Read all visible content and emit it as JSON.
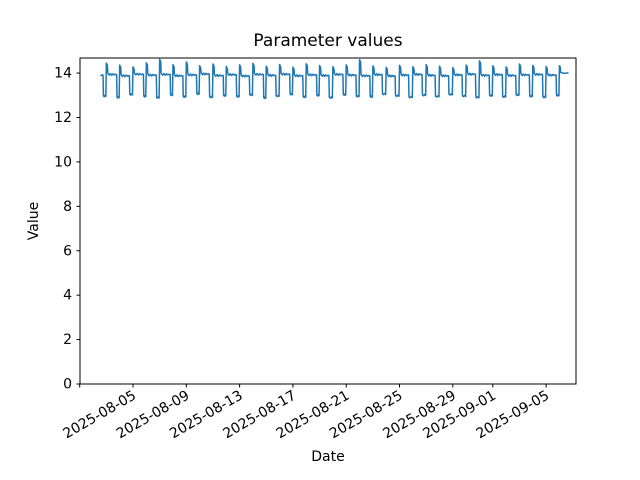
{
  "figure": {
    "title": "Parameter values",
    "xlabel": "Date",
    "ylabel": "Value"
  },
  "chart_data": {
    "type": "line",
    "title": "Parameter values",
    "xlabel": "Date",
    "ylabel": "Value",
    "grid": false,
    "legend": "none",
    "line_color": "#1f77b4",
    "axis_color": "#000000",
    "ylim": [
      0,
      14.68
    ],
    "yticks": [
      0,
      2,
      4,
      6,
      8,
      10,
      12,
      14
    ],
    "x_axis": {
      "start_date": "2025-08-01",
      "days_span": 37.25,
      "tick_rotation_deg": 30,
      "ticks": [
        {
          "day": 0,
          "label": ""
        },
        {
          "day": 4,
          "label": "2025-08-05"
        },
        {
          "day": 8,
          "label": "2025-08-09"
        },
        {
          "day": 12,
          "label": "2025-08-13"
        },
        {
          "day": 16,
          "label": "2025-08-17"
        },
        {
          "day": 20,
          "label": "2025-08-21"
        },
        {
          "day": 24,
          "label": "2025-08-25"
        },
        {
          "day": 28,
          "label": "2025-08-29"
        },
        {
          "day": 31,
          "label": "2025-09-01"
        },
        {
          "day": 35,
          "label": "2025-09-05"
        }
      ]
    },
    "series": {
      "name": "Parameter values",
      "description": "Daily cycle: plateau ~13.9, sharp drop to trough ~12.9, sharp rise with brief spike ~14.3-14.6. Hourly-like sampling from 2025-08-02 ~13:00 to 2025-09-06 ~15:00.",
      "data_start_day": 1.56,
      "first_cycle_day": 1.0,
      "value_range": [
        12.85,
        14.62
      ],
      "daily_cycles": [
        {
          "s": 14.32,
          "p": 13.93,
          "t": 12.95,
          "w": 0.2
        },
        {
          "s": 14.45,
          "p": 13.96,
          "t": 12.89,
          "w": 0.18
        },
        {
          "s": 14.36,
          "p": 13.9,
          "t": 13.02,
          "w": 0.22
        },
        {
          "s": 14.28,
          "p": 13.97,
          "t": 12.94,
          "w": 0.17
        },
        {
          "s": 14.46,
          "p": 13.93,
          "t": 12.88,
          "w": 0.2
        },
        {
          "s": 14.62,
          "p": 13.96,
          "t": 13.0,
          "w": 0.16
        },
        {
          "s": 14.38,
          "p": 13.9,
          "t": 12.92,
          "w": 0.21
        },
        {
          "s": 14.5,
          "p": 13.94,
          "t": 13.05,
          "w": 0.19
        },
        {
          "s": 14.33,
          "p": 13.98,
          "t": 12.9,
          "w": 0.23
        },
        {
          "s": 14.41,
          "p": 13.91,
          "t": 12.97,
          "w": 0.18
        },
        {
          "s": 14.3,
          "p": 13.95,
          "t": 12.93,
          "w": 0.2
        },
        {
          "s": 14.37,
          "p": 13.89,
          "t": 13.0,
          "w": 0.22
        },
        {
          "s": 14.44,
          "p": 13.96,
          "t": 12.87,
          "w": 0.17
        },
        {
          "s": 14.31,
          "p": 13.92,
          "t": 12.95,
          "w": 0.24
        },
        {
          "s": 14.39,
          "p": 13.97,
          "t": 13.03,
          "w": 0.19
        },
        {
          "s": 14.27,
          "p": 13.9,
          "t": 12.91,
          "w": 0.21
        },
        {
          "s": 14.42,
          "p": 13.94,
          "t": 12.98,
          "w": 0.18
        },
        {
          "s": 14.34,
          "p": 13.91,
          "t": 12.88,
          "w": 0.25
        },
        {
          "s": 14.29,
          "p": 13.96,
          "t": 13.01,
          "w": 0.2
        },
        {
          "s": 14.37,
          "p": 13.93,
          "t": 12.94,
          "w": 0.22
        },
        {
          "s": 14.6,
          "p": 13.9,
          "t": 12.92,
          "w": 0.18
        },
        {
          "s": 14.32,
          "p": 13.95,
          "t": 13.04,
          "w": 0.26
        },
        {
          "s": 14.26,
          "p": 13.89,
          "t": 12.96,
          "w": 0.28
        },
        {
          "s": 14.35,
          "p": 13.93,
          "t": 12.9,
          "w": 0.27
        },
        {
          "s": 14.29,
          "p": 13.96,
          "t": 12.99,
          "w": 0.26
        },
        {
          "s": 14.38,
          "p": 13.92,
          "t": 12.93,
          "w": 0.28
        },
        {
          "s": 14.31,
          "p": 13.9,
          "t": 13.02,
          "w": 0.27
        },
        {
          "s": 14.25,
          "p": 13.94,
          "t": 12.95,
          "w": 0.26
        },
        {
          "s": 14.36,
          "p": 13.97,
          "t": 12.89,
          "w": 0.25
        },
        {
          "s": 14.55,
          "p": 13.92,
          "t": 12.97,
          "w": 0.22
        },
        {
          "s": 14.33,
          "p": 13.95,
          "t": 12.92,
          "w": 0.24
        },
        {
          "s": 14.28,
          "p": 13.91,
          "t": 13.0,
          "w": 0.23
        },
        {
          "s": 14.41,
          "p": 13.94,
          "t": 12.94,
          "w": 0.21
        },
        {
          "s": 14.35,
          "p": 13.96,
          "t": 12.9,
          "w": 0.22
        },
        {
          "s": 14.3,
          "p": 13.93,
          "t": 12.98,
          "w": 0.2
        }
      ],
      "end_segment": {
        "spike": 14.33,
        "plateau": 14.03,
        "end_day": 36.63
      }
    }
  }
}
